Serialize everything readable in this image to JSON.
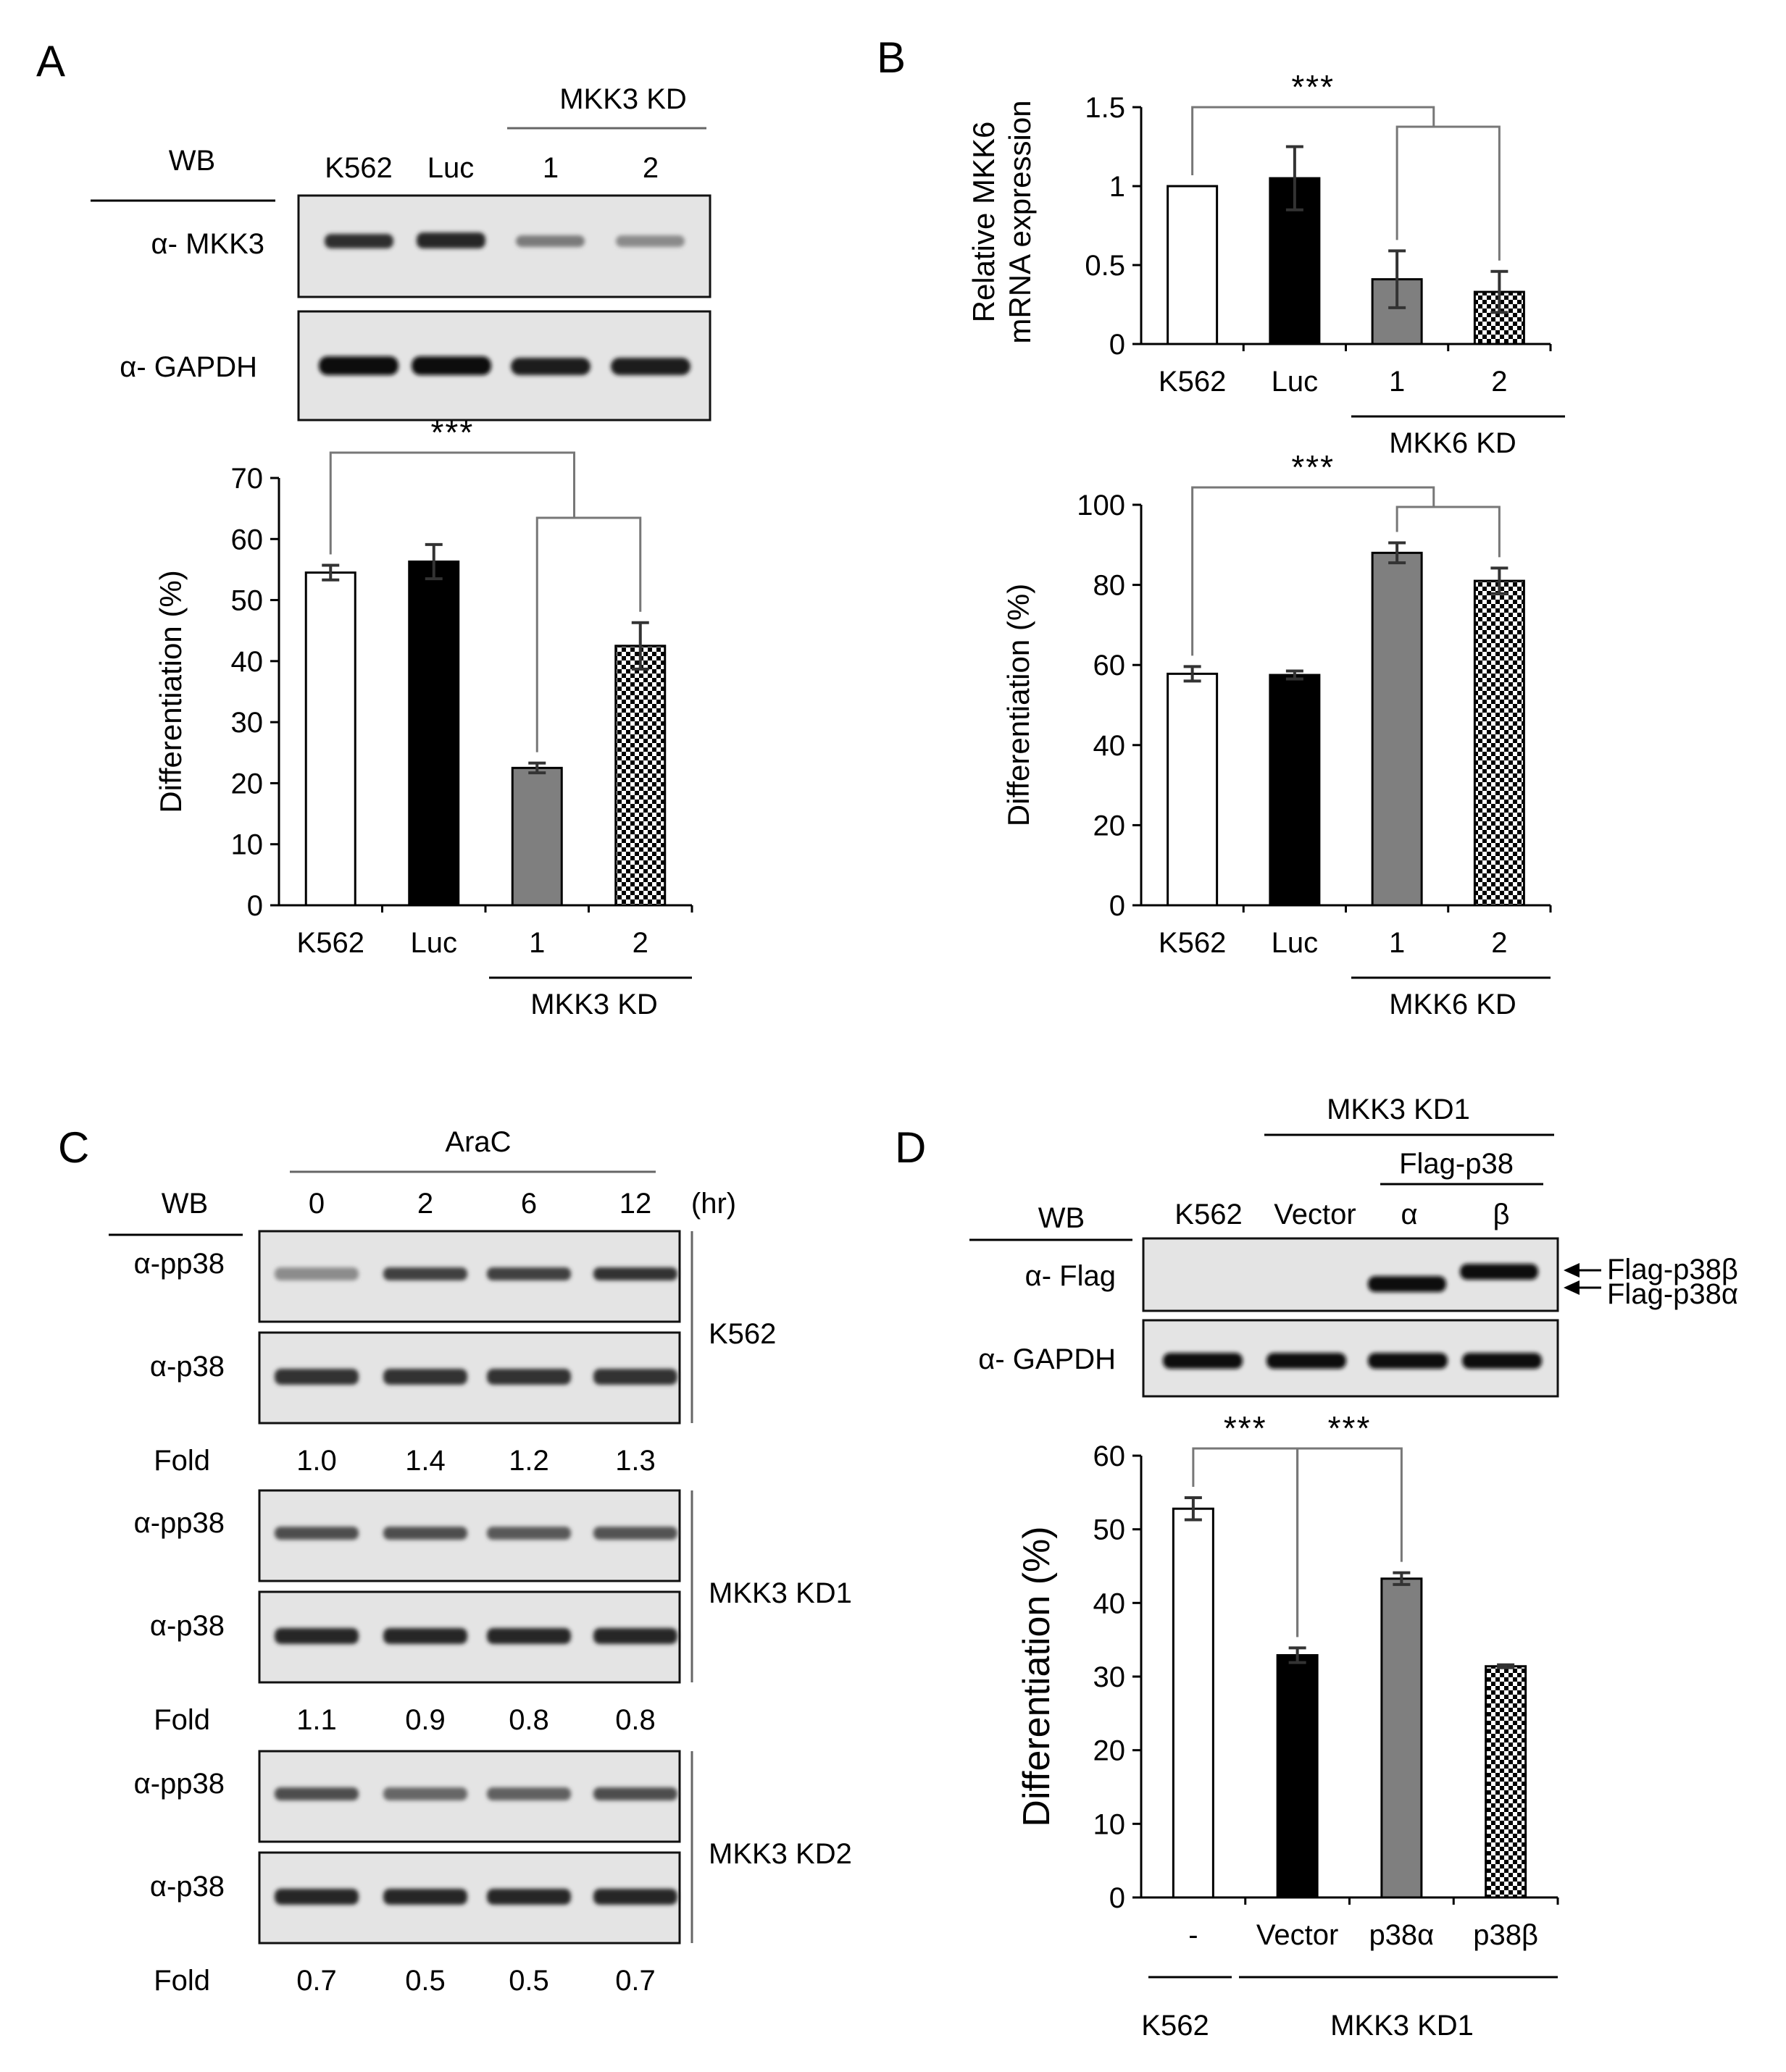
{
  "panels": {
    "A": {
      "letter": "A",
      "wb_header": "WB",
      "group_label": "MKK3 KD",
      "lanes": [
        "K562",
        "Luc",
        "1",
        "2"
      ],
      "blot_rows": [
        "α- MKK3",
        "α- GAPDH"
      ]
    },
    "B": {
      "letter": "B"
    },
    "C": {
      "letter": "C",
      "wb_header": "WB",
      "treatment": "AraC",
      "timepoints": [
        "0",
        "2",
        "6",
        "12"
      ],
      "time_unit": "(hr)",
      "rows": [
        "α-pp38",
        "α-p38"
      ],
      "fold_label": "Fold",
      "groups": [
        {
          "name": "K562",
          "fold": [
            "1.0",
            "1.4",
            "1.2",
            "1.3"
          ]
        },
        {
          "name": "MKK3 KD1",
          "fold": [
            "1.1",
            "0.9",
            "0.8",
            "0.8"
          ]
        },
        {
          "name": "MKK3 KD2",
          "fold": [
            "0.7",
            "0.5",
            "0.5",
            "0.7"
          ]
        }
      ]
    },
    "D": {
      "letter": "D",
      "wb_header": "WB",
      "group_label": "MKK3 KD1",
      "subgroup_label": "Flag-p38",
      "lanes": [
        "K562",
        "Vector",
        "α",
        "β"
      ],
      "blot_rows": [
        "α- Flag",
        "α- GAPDH"
      ],
      "arrow_labels": [
        "Flag-p38β",
        "Flag-p38α"
      ]
    }
  },
  "chart_data": [
    {
      "id": "A-differentiation",
      "type": "bar",
      "categories": [
        "K562",
        "Luc",
        "1",
        "2"
      ],
      "category_group": "MKK3 KD",
      "values": [
        54.5,
        56.3,
        22.5,
        42.5
      ],
      "errors": [
        1.2,
        2.8,
        0.8,
        3.8
      ],
      "fills": [
        "white",
        "black",
        "gray",
        "checker"
      ],
      "ylabel": "Differentiation (%)",
      "ylim": [
        0,
        70
      ],
      "yticks": [
        0,
        10,
        20,
        30,
        40,
        50,
        60,
        70
      ],
      "significance": "***"
    },
    {
      "id": "B-mkk6-expression",
      "type": "bar",
      "categories": [
        "K562",
        "Luc",
        "1",
        "2"
      ],
      "category_group": "MKK6 KD",
      "values": [
        1.0,
        1.05,
        0.41,
        0.33
      ],
      "errors": [
        0,
        0.2,
        0.18,
        0.13
      ],
      "fills": [
        "white",
        "black",
        "gray",
        "checker"
      ],
      "ylabel_lines": [
        "Relative  MKK6",
        "mRNA expression"
      ],
      "ylim": [
        0,
        1.5
      ],
      "yticks": [
        "0",
        "0.5",
        "1",
        "1.5"
      ],
      "significance": "***"
    },
    {
      "id": "B-differentiation",
      "type": "bar",
      "categories": [
        "K562",
        "Luc",
        "1",
        "2"
      ],
      "category_group": "MKK6 KD",
      "values": [
        57.8,
        57.5,
        88.0,
        81.0
      ],
      "errors": [
        1.8,
        1.0,
        2.5,
        3.2
      ],
      "fills": [
        "white",
        "black",
        "gray",
        "checker"
      ],
      "ylabel": "Differentiation (%)",
      "ylim": [
        0,
        100
      ],
      "yticks": [
        0,
        20,
        40,
        60,
        80,
        100
      ],
      "significance": "***"
    },
    {
      "id": "D-differentiation",
      "type": "bar",
      "categories": [
        "-",
        "Vector",
        "p38α",
        "p38β"
      ],
      "category_groups": [
        "K562",
        "MKK3 KD1"
      ],
      "values": [
        52.8,
        32.9,
        43.3,
        31.4
      ],
      "errors": [
        1.5,
        1.0,
        0.8,
        0.2
      ],
      "fills": [
        "white",
        "black",
        "gray",
        "checker"
      ],
      "ylabel": "Differentiation (%)",
      "ylim": [
        0,
        60
      ],
      "yticks": [
        0,
        10,
        20,
        30,
        40,
        50,
        60
      ],
      "significance": [
        "***",
        "***"
      ]
    }
  ]
}
